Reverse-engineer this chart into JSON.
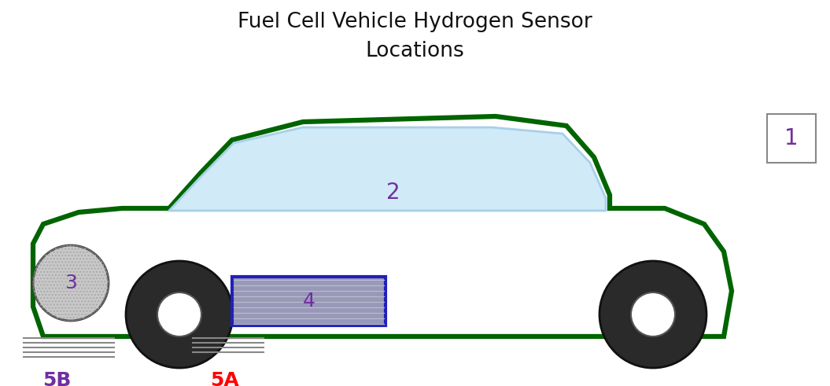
{
  "title_line1": "Fuel Cell Vehicle Hydrogen Sensor",
  "title_line2": "Locations",
  "title_fontsize": 19,
  "title_color": "#111111",
  "title_fontweight": "normal",
  "bg_color": "#ffffff",
  "car_body_color": "#006400",
  "car_body_lw": 4.5,
  "car_fill_color": "#ffffff",
  "passenger_compartment_color": "#d0eaf8",
  "passenger_outline_color": "#a8d0e8",
  "passenger_compartment_lw": 1.5,
  "wheel_outer_color": "#2a2a2a",
  "wheel_inner_color": "#ffffff",
  "wheel_border_color": "#111111",
  "label_purple": "#7030a0",
  "label_red": "#ff0000",
  "fuel_cell_box_border": "#2020bb",
  "fuel_cell_box_fill": "#9898b8",
  "fuel_cell_lines_color": "#bbbbcc",
  "fuel_storage_border": "#444444",
  "fuel_storage_fill": "#c8c8c8",
  "exhaust_color": "#888888",
  "box1_border": "#888888",
  "label_fontsize": 20,
  "small_label_fontsize": 18
}
